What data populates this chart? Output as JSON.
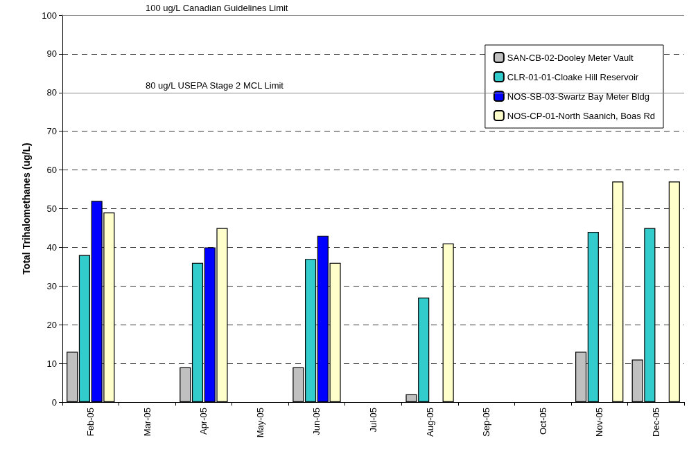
{
  "chart_data": {
    "type": "bar",
    "ylabel": "Total Trihalomethanes (ug/L)",
    "categories": [
      "Feb-05",
      "Mar-05",
      "Apr-05",
      "May-05",
      "Jun-05",
      "Jul-05",
      "Aug-05",
      "Sep-05",
      "Oct-05",
      "Nov-05",
      "Dec-05"
    ],
    "series": [
      {
        "name": "SAN-CB-02-Dooley Meter Vault",
        "color": "#c0c0c0",
        "values": [
          13,
          null,
          9,
          null,
          9,
          null,
          2,
          null,
          null,
          13,
          11
        ]
      },
      {
        "name": "CLR-01-01-Cloake Hill Reservoir",
        "color": "#33cccc",
        "values": [
          38,
          null,
          36,
          null,
          37,
          null,
          27,
          null,
          null,
          44,
          45
        ]
      },
      {
        "name": "NOS-SB-03-Swartz Bay Meter Bldg",
        "color": "#0000ff",
        "values": [
          52,
          null,
          40,
          null,
          43,
          null,
          null,
          null,
          null,
          null,
          null
        ]
      },
      {
        "name": "NOS-CP-01-North Saanich, Boas Rd",
        "color": "#ffffcc",
        "values": [
          49,
          null,
          45,
          null,
          36,
          null,
          41,
          null,
          null,
          57,
          57
        ]
      }
    ],
    "ylim": [
      0,
      100
    ],
    "yticks": [
      0,
      10,
      20,
      30,
      40,
      50,
      60,
      70,
      80,
      90,
      100
    ],
    "grid": "y",
    "legend": "top right",
    "ref_lines": [
      {
        "axis": "y",
        "value": 100,
        "label": "100 ug/L Canadian Guidelines Limit"
      },
      {
        "axis": "y",
        "value": 80,
        "label": "80 ug/L USEPA Stage 2 MCL Limit"
      }
    ]
  }
}
